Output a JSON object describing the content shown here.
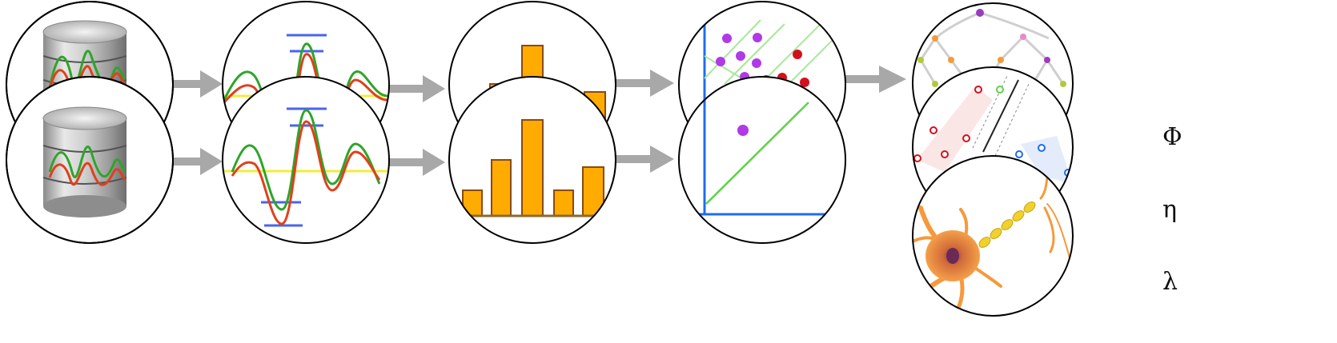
{
  "symbols": {
    "phi": "Φ",
    "eta": "η",
    "lambda": "λ"
  },
  "colors": {
    "arrow": "#a8a8a8",
    "green_signal": "#2ea52a",
    "red_signal": "#e0401c",
    "threshold_blue": "#4a63f0",
    "baseline_yellow": "#f2ec3a",
    "bar_fill": "#ffab00",
    "bar_stroke": "#8a4b10",
    "axis_blue": "#1e6cf0",
    "boundary_green": "#5fd24a",
    "point_purple": "#b03ae6",
    "point_red": "#d4101e",
    "neuron_orange": "#f59a3c",
    "myelin_yellow": "#f0d22a",
    "tree_purple": "#9a3cc0"
  },
  "stages": [
    "database-icon",
    "filtered-signal-icon",
    "histogram-icon",
    "classifier-boundary-icon",
    "model-icons"
  ]
}
